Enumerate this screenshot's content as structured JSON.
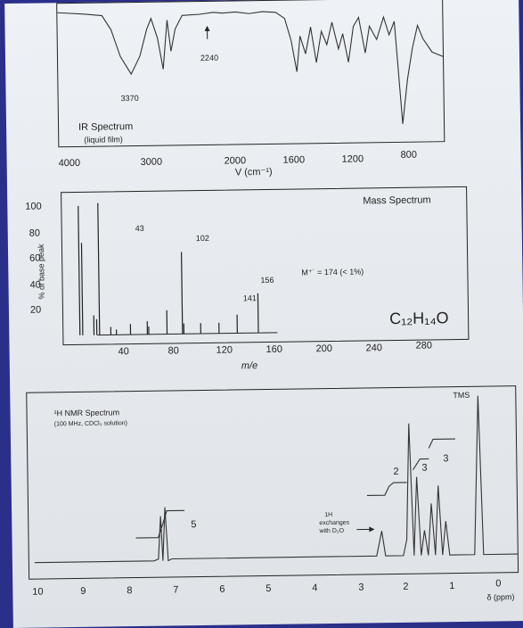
{
  "ir": {
    "title": "IR Spectrum",
    "subtitle": "(liquid film)",
    "peak_3370": "3370",
    "peak_2240": "2240",
    "xlabel": "V (cm⁻¹)",
    "xticks": [
      "4000",
      "3000",
      "2000",
      "1600",
      "1200",
      "800"
    ]
  },
  "ms": {
    "title": "Mass Spectrum",
    "ylabel": "% of base peak",
    "xlabel": "m/e",
    "yticks": [
      "100",
      "80",
      "60",
      "40",
      "20"
    ],
    "xticks": [
      "40",
      "80",
      "120",
      "160",
      "200",
      "240",
      "280"
    ],
    "peak_labels": [
      "43",
      "102",
      "156",
      "141"
    ],
    "molecular_ion": "M⁺˙ = 174 (< 1%)",
    "formula": "C₁₂H₁₄O"
  },
  "nmr": {
    "title": "¹H NMR Spectrum",
    "subtitle": "(100 MHz, CDCl₃ solution)",
    "tms": "TMS",
    "int_5": "5",
    "int_2": "2",
    "int_3a": "3",
    "int_3b": "3",
    "exchange_note_1": "1H",
    "exchange_note_2": "exchanges",
    "exchange_note_3": "with D₂O",
    "xticks": [
      "10",
      "9",
      "8",
      "7",
      "6",
      "5",
      "4",
      "3",
      "2",
      "1",
      "0"
    ],
    "xlabel": "δ (ppm)"
  },
  "chart_data": [
    {
      "type": "line",
      "title": "IR Spectrum",
      "xlabel": "V (cm⁻¹)",
      "xlim": [
        4000,
        600
      ],
      "x": [
        4000,
        3700,
        3500,
        3370,
        3250,
        3100,
        3050,
        2960,
        2930,
        2870,
        2600,
        2240,
        2000,
        1800,
        1700,
        1600,
        1580,
        1490,
        1450,
        1380,
        1300,
        1200,
        1100,
        1050,
        1000,
        900,
        800,
        760,
        700
      ],
      "y": [
        100,
        98,
        80,
        40,
        75,
        85,
        80,
        45,
        55,
        70,
        95,
        92,
        96,
        95,
        94,
        70,
        75,
        55,
        60,
        70,
        65,
        80,
        60,
        55,
        80,
        70,
        60,
        10,
        20
      ]
    },
    {
      "type": "bar",
      "title": "Mass Spectrum",
      "xlabel": "m/e",
      "ylabel": "% of base peak",
      "xlim": [
        20,
        300
      ],
      "ylim": [
        0,
        100
      ],
      "x": [
        29,
        31,
        39,
        41,
        43,
        51,
        55,
        65,
        77,
        78,
        91,
        102,
        103,
        115,
        128,
        141,
        156
      ],
      "values": [
        98,
        70,
        15,
        12,
        100,
        6,
        4,
        8,
        10,
        6,
        18,
        62,
        8,
        8,
        8,
        14,
        30
      ]
    },
    {
      "type": "line",
      "title": "¹H NMR Spectrum",
      "xlabel": "δ (ppm)",
      "xlim": [
        10,
        0
      ],
      "peaks_ppm": [
        7.3,
        2.4,
        1.8,
        1.6,
        1.25,
        1.0,
        0.0
      ],
      "integrations": [
        5,
        1,
        2,
        3,
        3
      ]
    }
  ]
}
